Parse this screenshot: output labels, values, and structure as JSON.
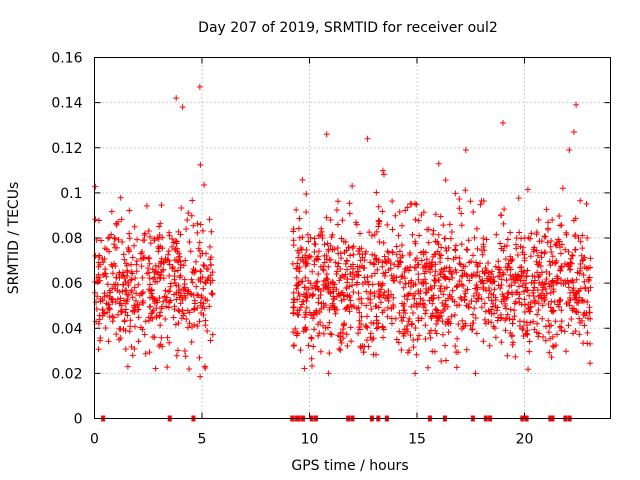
{
  "chart_data": {
    "type": "scatter",
    "title": "Day 207 of 2019, SRMTID for receiver oul2",
    "xlabel": "GPS time / hours",
    "ylabel": "SRMTID / TECUs",
    "xlim": [
      0,
      24
    ],
    "ylim": [
      0,
      0.16
    ],
    "x_ticks": [
      0,
      5,
      10,
      15,
      20
    ],
    "x_tick_labels": [
      "0",
      "5",
      "10",
      "15",
      "20"
    ],
    "y_ticks": [
      0,
      0.02,
      0.04,
      0.06,
      0.08,
      0.1,
      0.12,
      0.14,
      0.16
    ],
    "y_tick_labels": [
      "0",
      "0.02",
      "0.04",
      "0.06",
      "0.08",
      "0.1",
      "0.12",
      "0.14",
      "0.16"
    ],
    "grid": true,
    "marker": "+",
    "color": "#ff0000",
    "segments": [
      {
        "x_start": 0.0,
        "x_end": 5.5,
        "y_min": 0.015,
        "y_max": 0.147,
        "y_center": 0.058,
        "count": 520
      },
      {
        "x_start": 9.2,
        "x_end": 23.1,
        "y_min": 0.02,
        "y_max": 0.139,
        "y_center": 0.058,
        "count": 1400
      }
    ],
    "peaks": [
      {
        "x": 4.9,
        "y": 0.147
      },
      {
        "x": 4.1,
        "y": 0.138
      },
      {
        "x": 3.8,
        "y": 0.142
      },
      {
        "x": 10.8,
        "y": 0.126
      },
      {
        "x": 12.7,
        "y": 0.124
      },
      {
        "x": 19.0,
        "y": 0.131
      },
      {
        "x": 22.4,
        "y": 0.139
      },
      {
        "x": 22.3,
        "y": 0.127
      }
    ],
    "zero_markers_x": [
      0.4,
      3.5,
      4.6,
      9.2,
      9.4,
      9.5,
      9.7,
      10.1,
      10.3,
      11.8,
      12.0,
      12.9,
      13.2,
      13.6,
      15.6,
      16.3,
      17.6,
      18.2,
      18.4,
      19.9,
      20.1,
      21.2,
      21.3,
      21.9,
      22.1
    ]
  }
}
